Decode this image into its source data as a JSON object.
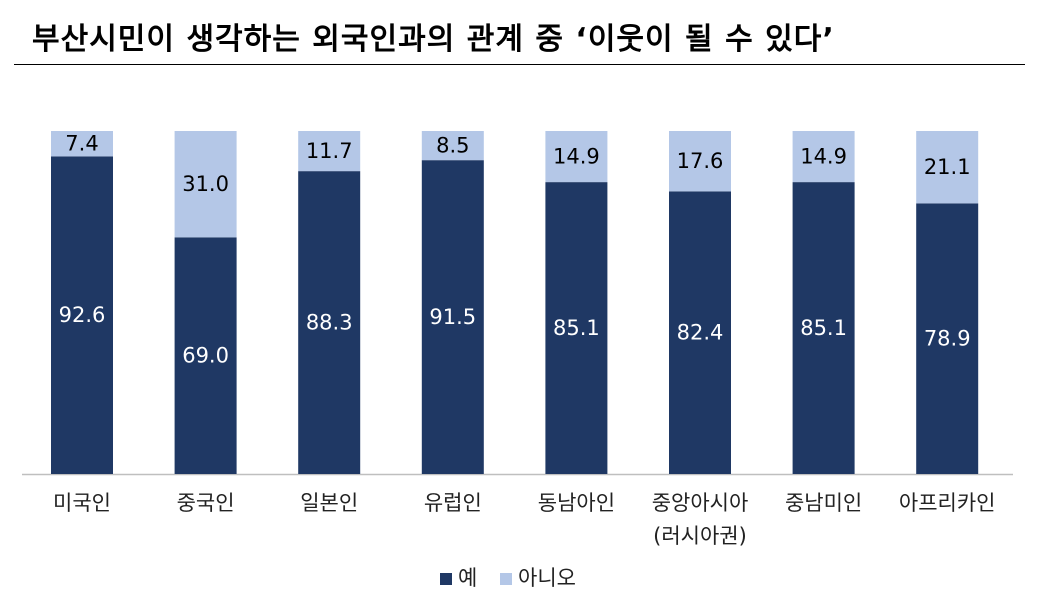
{
  "title": "부산시민이 생각하는 외국인과의 관계 중 ‘이웃이 될 수 있다’",
  "chart_data": {
    "type": "bar",
    "stacked": true,
    "percent": true,
    "title": "부산시민이 생각하는 외국인과의 관계 중 ‘이웃이 될 수 있다’",
    "xlabel": "",
    "ylabel": "",
    "ylim": [
      0,
      100
    ],
    "grid": false,
    "legend_position": "bottom",
    "categories": [
      [
        "미국인"
      ],
      [
        "중국인"
      ],
      [
        "일본인"
      ],
      [
        "유럽인"
      ],
      [
        "동남아인"
      ],
      [
        "중앙아시아",
        "(러시아권)"
      ],
      [
        "중남미인"
      ],
      [
        "아프리카인"
      ]
    ],
    "series": [
      {
        "name": "예",
        "color": "#1f3864",
        "label_color": "#ffffff",
        "values": [
          92.6,
          69.0,
          88.3,
          91.5,
          85.1,
          82.4,
          85.1,
          78.9
        ],
        "labels": [
          "92.6",
          "69.0",
          "88.3",
          "91.5",
          "85.1",
          "82.4",
          "85.1",
          "78.9"
        ]
      },
      {
        "name": "아니오",
        "color": "#b4c7e7",
        "label_color": "#000000",
        "values": [
          7.4,
          31.0,
          11.7,
          8.5,
          14.9,
          17.6,
          14.9,
          21.1
        ],
        "labels": [
          "7.4",
          "31.0",
          "11.7",
          "8.5",
          "14.9",
          "17.6",
          "14.9",
          "21.1"
        ]
      }
    ]
  }
}
